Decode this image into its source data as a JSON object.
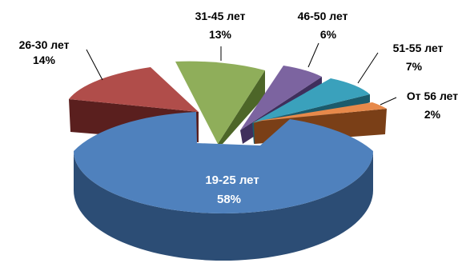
{
  "chart_data": {
    "type": "pie",
    "style": "3d-exploded",
    "title": "",
    "slices": [
      {
        "label": "19-25 лет",
        "percent_text": "58%",
        "value": 58,
        "color": "#4f81bd",
        "side": "#2c4d75"
      },
      {
        "label": "26-30 лет",
        "percent_text": "14%",
        "value": 14,
        "color": "#b04d4a",
        "side": "#5a1f1e"
      },
      {
        "label": "31-45 лет",
        "percent_text": "13%",
        "value": 13,
        "color": "#8fae5a",
        "side": "#4d6628"
      },
      {
        "label": "46-50 лет",
        "percent_text": "6%",
        "value": 6,
        "color": "#7c64a0",
        "side": "#3f2f5c"
      },
      {
        "label": "51-55 лет",
        "percent_text": "7%",
        "value": 7,
        "color": "#3aa1bc",
        "side": "#1b5b6c"
      },
      {
        "label": "От 56 лет",
        "percent_text": "2%",
        "value": 2,
        "color": "#e7894a",
        "side": "#7a3f17"
      }
    ]
  }
}
